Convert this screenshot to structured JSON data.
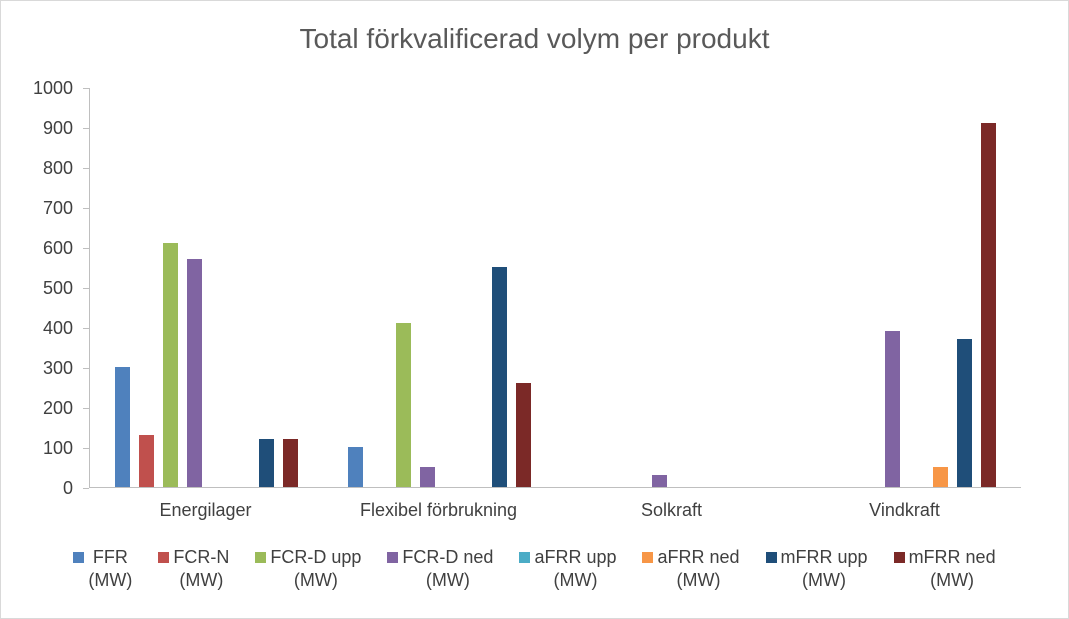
{
  "title": "Total förkvalificerad volym per produkt",
  "style": {
    "background": "#FFFFFF",
    "border_color": "#D9D9D9",
    "title_color": "#595959",
    "axis_label_color": "#404040",
    "axis_line_color": "#BFBFBF"
  },
  "chart_data": {
    "type": "bar",
    "title": "Total förkvalificerad volym per produkt",
    "categories": [
      "Energilager",
      "Flexibel förbrukning",
      "Solkraft",
      "Vindkraft"
    ],
    "series": [
      {
        "name": "FFR",
        "unit": "(MW)",
        "color": "#4F81BD",
        "values": [
          300,
          100,
          0,
          0
        ]
      },
      {
        "name": "FCR-N",
        "unit": "(MW)",
        "color": "#C0504D",
        "values": [
          130,
          0,
          0,
          0
        ]
      },
      {
        "name": "FCR-D upp",
        "unit": "(MW)",
        "color": "#9BBB59",
        "values": [
          610,
          410,
          0,
          0
        ]
      },
      {
        "name": "FCR-D ned",
        "unit": "(MW)",
        "color": "#8064A2",
        "values": [
          570,
          50,
          30,
          390
        ]
      },
      {
        "name": "aFRR upp",
        "unit": "(MW)",
        "color": "#4BACC6",
        "values": [
          0,
          0,
          0,
          0
        ]
      },
      {
        "name": "aFRR ned",
        "unit": "(MW)",
        "color": "#F79646",
        "values": [
          0,
          0,
          0,
          50
        ]
      },
      {
        "name": "mFRR upp",
        "unit": "(MW)",
        "color": "#1F4E79",
        "values": [
          120,
          550,
          0,
          370
        ]
      },
      {
        "name": "mFRR ned",
        "unit": "(MW)",
        "color": "#7B2927",
        "values": [
          120,
          260,
          0,
          910
        ]
      }
    ],
    "ylim": [
      0,
      1000
    ],
    "ytick_step": 100,
    "yticks": [
      1000,
      900,
      800,
      700,
      600,
      500,
      400,
      300,
      200,
      100,
      0
    ],
    "grid": false,
    "legend_position": "bottom",
    "legend_marker": "square"
  }
}
